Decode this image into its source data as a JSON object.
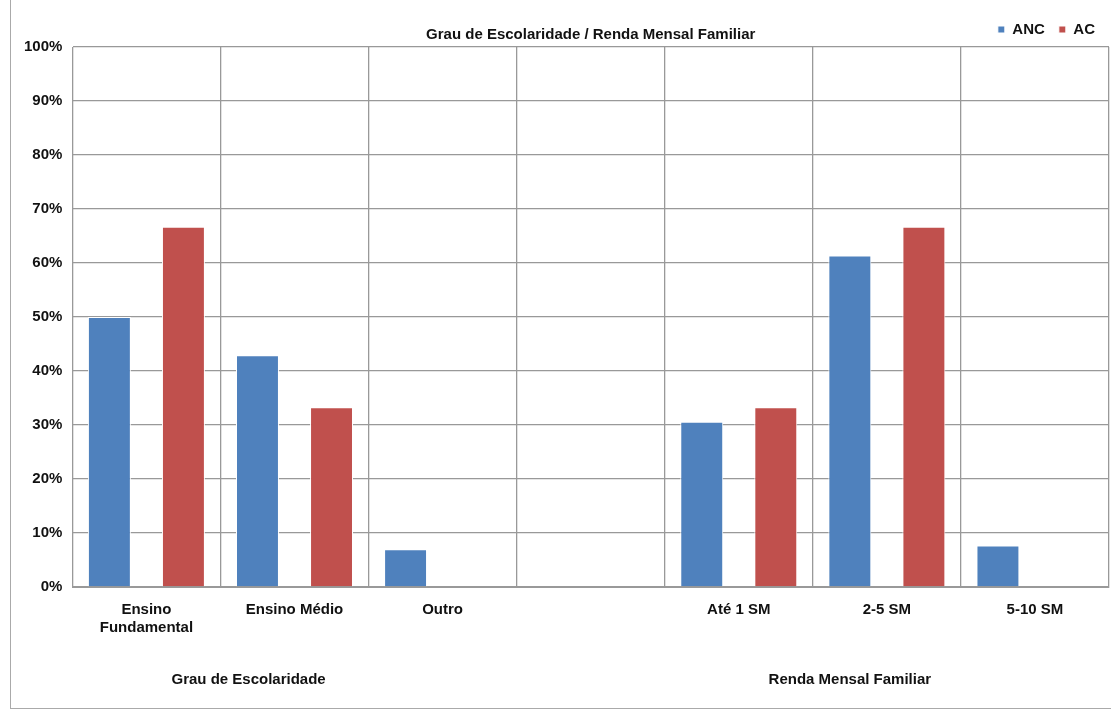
{
  "chart_data": {
    "type": "bar",
    "title": "Grau de Escolaridade / Renda Mensal Familiar",
    "categories": [
      "Ensino Fundamental",
      "Ensino Médio",
      "Outro",
      null,
      "Até 1 SM",
      "2-5 SM",
      "5-10 SM"
    ],
    "series": [
      {
        "name": "ANC",
        "color": "#4f81bd",
        "values": [
          50,
          42.9,
          7,
          null,
          30.6,
          61.4,
          7.7
        ]
      },
      {
        "name": "AC",
        "color": "#c0504d",
        "values": [
          66.7,
          33.3,
          null,
          null,
          33.3,
          66.7,
          null
        ]
      }
    ],
    "ylim": [
      0,
      100
    ],
    "yticks": [
      {
        "value": 0,
        "label": "0%"
      },
      {
        "value": 10,
        "label": "10%"
      },
      {
        "value": 20,
        "label": "20%"
      },
      {
        "value": 30,
        "label": "30%"
      },
      {
        "value": 40,
        "label": "40%"
      },
      {
        "value": 50,
        "label": "50%"
      },
      {
        "value": 60,
        "label": "60%"
      },
      {
        "value": 70,
        "label": "70%"
      },
      {
        "value": 80,
        "label": "80%"
      },
      {
        "value": 90,
        "label": "90%"
      },
      {
        "value": 100,
        "label": "100%"
      }
    ],
    "annotations": [
      "Grau de Escolaridade",
      "Renda Mensal Familiar"
    ],
    "grid": true,
    "legend": "top right"
  }
}
